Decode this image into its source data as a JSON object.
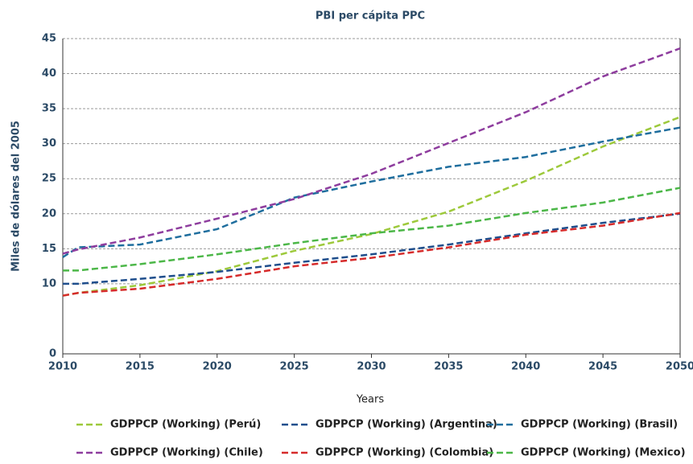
{
  "chart_data": {
    "type": "line",
    "title": "PBI per cápita PPC",
    "xlabel": "Years",
    "ylabel": "Miles de dólares del 2005",
    "x": [
      2010,
      2011,
      2015,
      2020,
      2025,
      2030,
      2035,
      2040,
      2045,
      2050
    ],
    "xlim": [
      2010,
      2050
    ],
    "xticks": [
      2010,
      2015,
      2020,
      2025,
      2030,
      2035,
      2040,
      2045,
      2050
    ],
    "ylim": [
      0,
      45
    ],
    "yticks": [
      0,
      10,
      15,
      20,
      25,
      30,
      35,
      40,
      45
    ],
    "grid": true,
    "series": [
      {
        "name": "GDPPCP (Working) (Perú)",
        "color": "#9dc93b",
        "values": [
          8.3,
          8.7,
          9.8,
          11.8,
          14.7,
          17.1,
          20.3,
          24.7,
          29.6,
          33.8
        ]
      },
      {
        "name": "GDPPCP (Working) (Argentina)",
        "color": "#1f4e8c",
        "values": [
          10.0,
          10.0,
          10.7,
          11.7,
          13.0,
          14.2,
          15.6,
          17.2,
          18.7,
          20.0
        ]
      },
      {
        "name": "GDPPCP (Working) (Brasil)",
        "color": "#1f6e9e",
        "values": [
          13.8,
          15.2,
          15.6,
          17.8,
          22.3,
          24.6,
          26.7,
          28.1,
          30.3,
          32.3
        ]
      },
      {
        "name": "GDPPCP (Working) (Chile)",
        "color": "#8e3d9e",
        "values": [
          14.3,
          14.9,
          16.6,
          19.3,
          22.1,
          25.7,
          30.1,
          34.5,
          39.6,
          43.6
        ]
      },
      {
        "name": "GDPPCP (Working) (Colombia)",
        "color": "#d62b2b",
        "values": [
          8.3,
          8.7,
          9.3,
          10.7,
          12.5,
          13.7,
          15.2,
          17.0,
          18.3,
          20.1
        ]
      },
      {
        "name": "GDPPCP (Working) (Mexico)",
        "color": "#4cb748",
        "values": [
          11.9,
          11.9,
          12.8,
          14.2,
          15.8,
          17.2,
          18.3,
          20.1,
          21.6,
          23.7
        ]
      }
    ]
  }
}
